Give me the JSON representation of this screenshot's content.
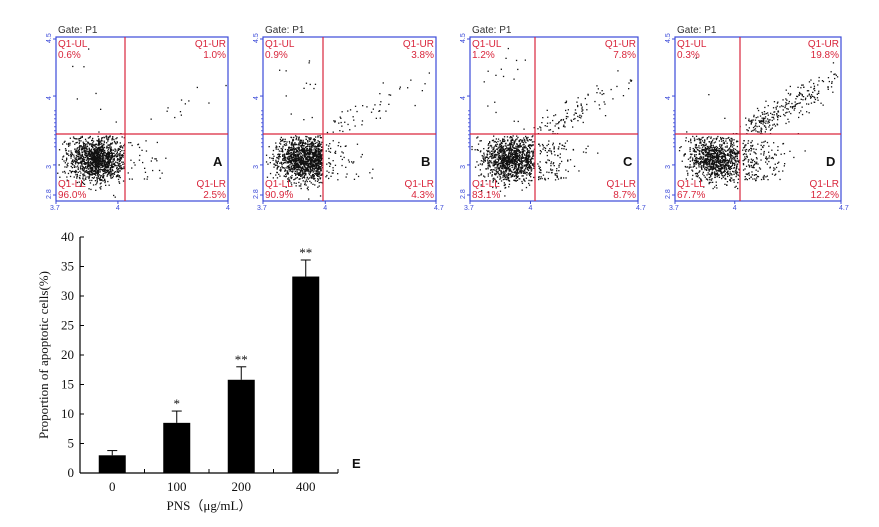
{
  "colors": {
    "frame": "#3b4ad8",
    "gate": "#d9263c",
    "dots": "#111111",
    "bar": "#000000"
  },
  "chart_data": [
    {
      "type": "scatter",
      "panel": "A",
      "title": "Gate: P1",
      "quadrants": {
        "ul": {
          "name": "Q1-UL",
          "value": "0.6%"
        },
        "ur": {
          "name": "Q1-UR",
          "value": "1.0%"
        },
        "ll": {
          "name": "Q1-LL",
          "value": "96.0%"
        },
        "lr": {
          "name": "Q1-LR",
          "value": "2.5%"
        }
      },
      "x_ticks": [
        "3.7",
        "4",
        "4"
      ],
      "y_ticks": [
        "4.5",
        "4",
        "3",
        "2.8"
      ]
    },
    {
      "type": "scatter",
      "panel": "B",
      "title": "Gate: P1",
      "quadrants": {
        "ul": {
          "name": "Q1-UL",
          "value": "0.9%"
        },
        "ur": {
          "name": "Q1-UR",
          "value": "3.8%"
        },
        "ll": {
          "name": "Q1-LL",
          "value": "90.9%"
        },
        "lr": {
          "name": "Q1-LR",
          "value": "4.3%"
        }
      },
      "x_ticks": [
        "3.7",
        "4",
        "4.7"
      ],
      "y_ticks": [
        "4.5",
        "4",
        "3",
        "2.8"
      ]
    },
    {
      "type": "scatter",
      "panel": "C",
      "title": "Gate: P1",
      "quadrants": {
        "ul": {
          "name": "Q1-UL",
          "value": "1.2%"
        },
        "ur": {
          "name": "Q1-UR",
          "value": "7.8%"
        },
        "ll": {
          "name": "Q1-LL",
          "value": "83.1%"
        },
        "lr": {
          "name": "Q1-LR",
          "value": "8.7%"
        }
      },
      "x_ticks": [
        "3.7",
        "4",
        "4.7"
      ],
      "y_ticks": [
        "4.5",
        "4",
        "3",
        "2.8"
      ]
    },
    {
      "type": "scatter",
      "panel": "D",
      "title": "Gate: P1",
      "quadrants": {
        "ul": {
          "name": "Q1-UL",
          "value": "0.3%"
        },
        "ur": {
          "name": "Q1-UR",
          "value": "19.8%"
        },
        "ll": {
          "name": "Q1-LL",
          "value": "67.7%"
        },
        "lr": {
          "name": "Q1-LR",
          "value": "12.2%"
        }
      },
      "x_ticks": [
        "3.7",
        "4",
        "4.7"
      ],
      "y_ticks": [
        "4.5",
        "4",
        "3",
        "2.8"
      ]
    },
    {
      "type": "bar",
      "panel": "E",
      "title": "",
      "categories": [
        "0",
        "100",
        "200",
        "400"
      ],
      "values": [
        3.0,
        8.5,
        15.8,
        33.3
      ],
      "errors": [
        0.8,
        2.0,
        2.2,
        2.8
      ],
      "significance": [
        "",
        "*",
        "**",
        "**"
      ],
      "ylabel": "Proportion of apoptotic cells(%)",
      "xlabel": "PNS（μg/mL）",
      "ylim": [
        0,
        40
      ],
      "yticks": [
        0,
        5,
        10,
        15,
        20,
        25,
        30,
        35,
        40
      ]
    }
  ]
}
